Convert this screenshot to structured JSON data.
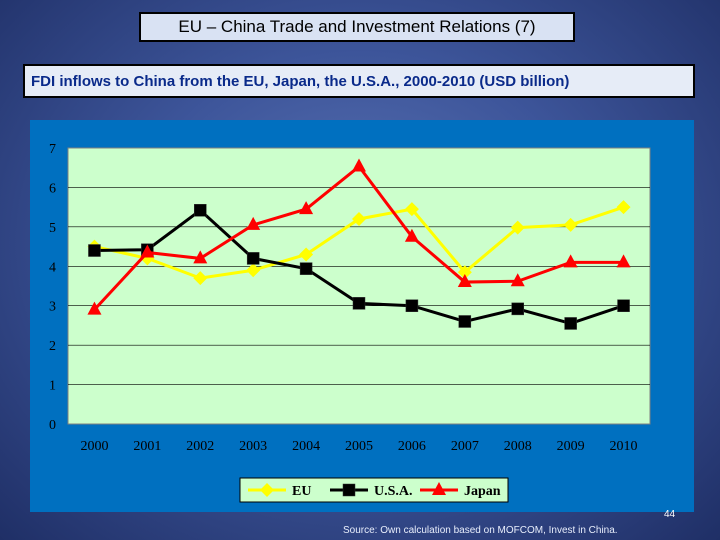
{
  "header": {
    "title": "EU – China Trade and Investment Relations (7)",
    "subtitle": "FDI inflows to China from the EU, Japan, the U.S.A., 2000-2010 (USD billion)"
  },
  "footer": {
    "page_number": "44",
    "source": "Source: Own calculation based on MOFCOM, Invest in China."
  },
  "chart_data": {
    "type": "line",
    "title": "",
    "xlabel": "",
    "ylabel": "",
    "categories": [
      "2000",
      "2001",
      "2002",
      "2003",
      "2004",
      "2005",
      "2006",
      "2007",
      "2008",
      "2009",
      "2010"
    ],
    "ylim": [
      0,
      7
    ],
    "yticks": [
      "0",
      "1",
      "2",
      "3",
      "4",
      "5",
      "6",
      "7"
    ],
    "grid": true,
    "legend_position": "bottom",
    "series": [
      {
        "name": "EU",
        "color": "#ffff00",
        "marker": "diamond",
        "values": [
          4.5,
          4.2,
          3.7,
          3.9,
          4.3,
          5.2,
          5.45,
          3.85,
          4.98,
          5.05,
          5.5
        ]
      },
      {
        "name": "U.S.A.",
        "color": "#000000",
        "marker": "square",
        "values": [
          4.4,
          4.42,
          5.42,
          4.2,
          3.94,
          3.06,
          3.0,
          2.6,
          2.92,
          2.55,
          3.0
        ]
      },
      {
        "name": "Japan",
        "color": "#ff0000",
        "marker": "triangle",
        "values": [
          2.9,
          4.35,
          4.2,
          5.05,
          5.45,
          6.53,
          4.75,
          3.6,
          3.62,
          4.1,
          4.1
        ]
      }
    ]
  }
}
